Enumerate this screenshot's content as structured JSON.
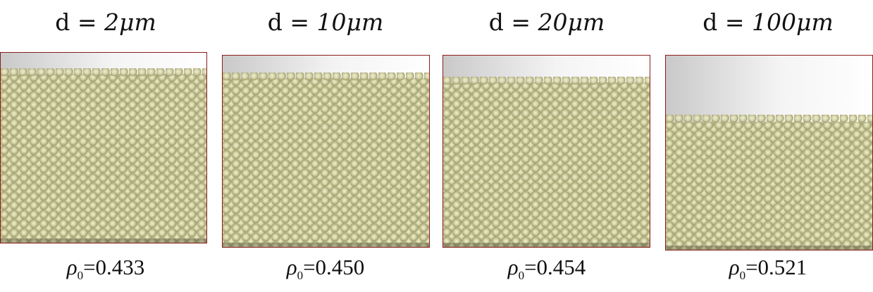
{
  "panels": [
    {
      "title_prefix": "d = ",
      "title_value": "2μm",
      "density_symbol": "ρ",
      "density_sub": "0",
      "density_value": "=0.433"
    },
    {
      "title_prefix": "d = ",
      "title_value": "10μm",
      "density_symbol": "ρ",
      "density_sub": "0",
      "density_value": "=0.450"
    },
    {
      "title_prefix": "d = ",
      "title_value": "20μm",
      "density_symbol": "ρ",
      "density_sub": "0",
      "density_value": "=0.454"
    },
    {
      "title_prefix": "d = ",
      "title_value": "100μm",
      "density_symbol": "ρ",
      "density_sub": "0",
      "density_value": "=0.521"
    }
  ],
  "colors": {
    "particle": "#b5b48a",
    "frame": "#8a1c1c"
  }
}
